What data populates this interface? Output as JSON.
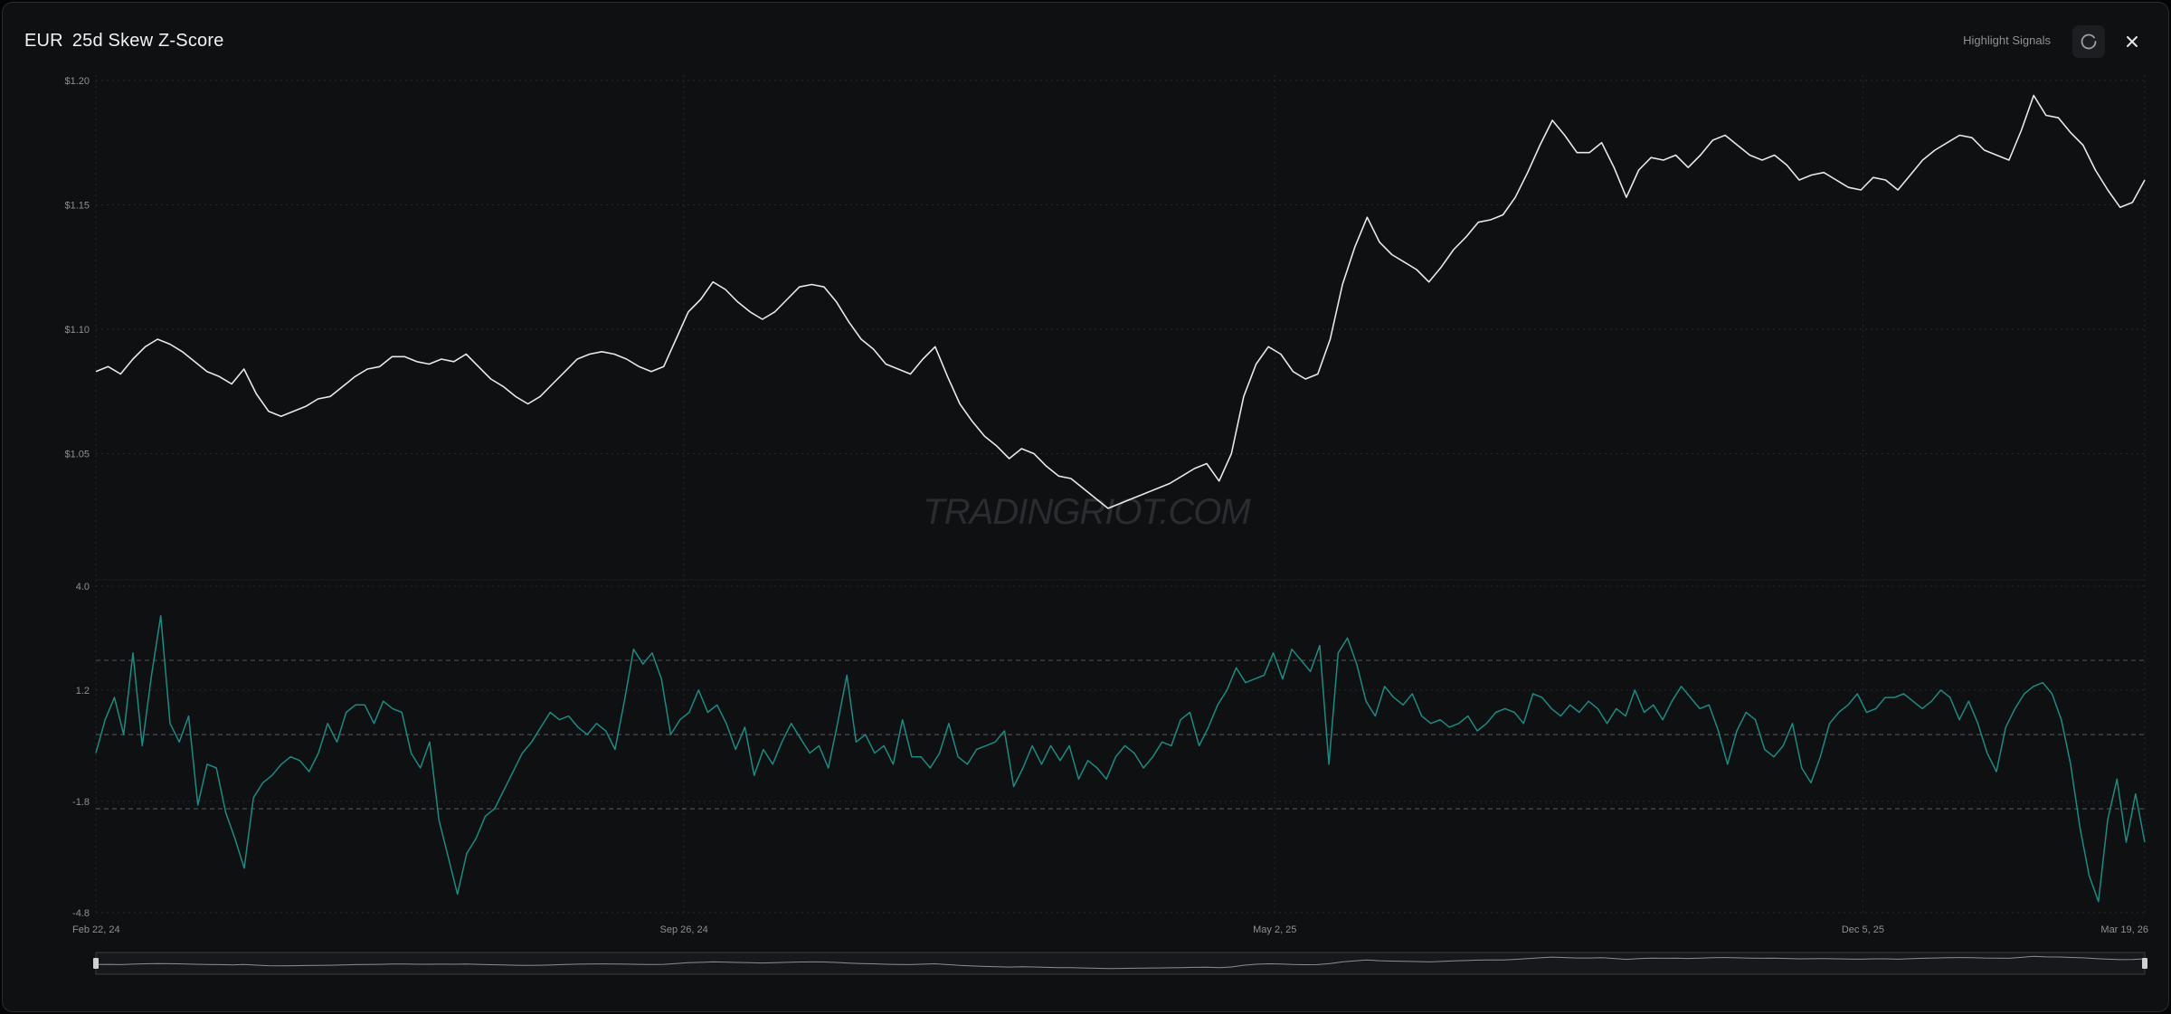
{
  "header": {
    "symbol": "EUR",
    "title": "25d Skew Z-Score",
    "highlight_label": "Highlight Signals",
    "refresh_icon": "refresh-icon",
    "close_icon": "close-icon"
  },
  "watermark": "TRADINGRIOT.COM",
  "colors": {
    "background": "#0f1012",
    "price_line": "#e8e8e8",
    "zscore_line": "#1e8a84",
    "grid": "#26282c",
    "threshold": "#4a4d52"
  },
  "chart_data": [
    {
      "type": "line",
      "x_type": "date",
      "x_start": "2024-02-22",
      "x_end": "2026-03-19",
      "x_tick_labels": [
        "Feb 22, 24",
        "Sep 26, 24",
        "May 2, 25",
        "Dec 5, 25",
        "Mar 19, 26"
      ],
      "y_tick_labels": [
        "$1.20",
        "$1.15",
        "$1.10",
        "$1.05"
      ],
      "ylim": [
        1.0,
        1.2
      ],
      "grid": true,
      "series": [
        {
          "values": [
            1.083,
            1.085,
            1.082,
            1.088,
            1.093,
            1.096,
            1.094,
            1.091,
            1.087,
            1.083,
            1.081,
            1.078,
            1.084,
            1.074,
            1.067,
            1.065,
            1.067,
            1.069,
            1.072,
            1.073,
            1.077,
            1.081,
            1.084,
            1.085,
            1.089,
            1.089,
            1.087,
            1.086,
            1.088,
            1.087,
            1.09,
            1.085,
            1.08,
            1.077,
            1.073,
            1.07,
            1.073,
            1.078,
            1.083,
            1.088,
            1.09,
            1.091,
            1.09,
            1.088,
            1.085,
            1.083,
            1.085,
            1.096,
            1.107,
            1.112,
            1.119,
            1.116,
            1.111,
            1.107,
            1.104,
            1.107,
            1.112,
            1.117,
            1.118,
            1.117,
            1.111,
            1.103,
            1.096,
            1.092,
            1.086,
            1.084,
            1.082,
            1.088,
            1.093,
            1.081,
            1.07,
            1.063,
            1.057,
            1.053,
            1.048,
            1.052,
            1.05,
            1.045,
            1.041,
            1.04,
            1.036,
            1.032,
            1.028,
            1.03,
            1.032,
            1.034,
            1.036,
            1.038,
            1.041,
            1.044,
            1.046,
            1.039,
            1.05,
            1.073,
            1.086,
            1.093,
            1.09,
            1.083,
            1.08,
            1.082,
            1.096,
            1.118,
            1.133,
            1.145,
            1.135,
            1.13,
            1.127,
            1.124,
            1.119,
            1.125,
            1.132,
            1.137,
            1.143,
            1.144,
            1.146,
            1.153,
            1.163,
            1.174,
            1.184,
            1.178,
            1.171,
            1.171,
            1.175,
            1.165,
            1.153,
            1.164,
            1.169,
            1.168,
            1.17,
            1.165,
            1.17,
            1.176,
            1.178,
            1.174,
            1.17,
            1.168,
            1.17,
            1.166,
            1.16,
            1.162,
            1.163,
            1.16,
            1.157,
            1.156,
            1.161,
            1.16,
            1.156,
            1.162,
            1.168,
            1.172,
            1.175,
            1.178,
            1.177,
            1.172,
            1.17,
            1.168,
            1.18,
            1.194,
            1.186,
            1.185,
            1.179,
            1.174,
            1.164,
            1.156,
            1.149,
            1.151,
            1.16
          ]
        }
      ]
    },
    {
      "type": "line",
      "y_tick_labels": [
        "4.0",
        "1.2",
        "-1.8",
        "-4.8"
      ],
      "ylim": [
        -4.8,
        4.0
      ],
      "threshold_lines": [
        2.0,
        0.0,
        -2.0
      ],
      "grid": true,
      "series": [
        {
          "values": [
            -0.5,
            0.4,
            1.0,
            0.0,
            2.2,
            -0.3,
            1.6,
            3.2,
            0.3,
            -0.2,
            0.5,
            -1.9,
            -0.8,
            -0.9,
            -2.1,
            -2.8,
            -3.6,
            -1.7,
            -1.3,
            -1.1,
            -0.8,
            -0.6,
            -0.7,
            -1.0,
            -0.5,
            0.3,
            -0.2,
            0.6,
            0.8,
            0.8,
            0.3,
            0.9,
            0.7,
            0.6,
            -0.5,
            -0.9,
            -0.2,
            -2.3,
            -3.3,
            -4.3,
            -3.2,
            -2.8,
            -2.2,
            -2.0,
            -1.5,
            -1.0,
            -0.5,
            -0.2,
            0.2,
            0.6,
            0.4,
            0.5,
            0.2,
            0.0,
            0.3,
            0.1,
            -0.4,
            0.9,
            2.3,
            1.9,
            2.2,
            1.5,
            0.0,
            0.4,
            0.6,
            1.2,
            0.6,
            0.8,
            0.3,
            -0.4,
            0.2,
            -1.1,
            -0.4,
            -0.8,
            -0.2,
            0.3,
            -0.1,
            -0.5,
            -0.3,
            -0.9,
            0.3,
            1.6,
            -0.2,
            0.0,
            -0.5,
            -0.3,
            -0.8,
            0.4,
            -0.6,
            -0.6,
            -0.9,
            -0.5,
            0.3,
            -0.6,
            -0.8,
            -0.4,
            -0.3,
            -0.2,
            0.1,
            -1.4,
            -0.9,
            -0.3,
            -0.8,
            -0.3,
            -0.7,
            -0.3,
            -1.2,
            -0.7,
            -0.9,
            -1.2,
            -0.6,
            -0.3,
            -0.5,
            -0.9,
            -0.6,
            -0.2,
            -0.3,
            0.4,
            0.6,
            -0.3,
            0.2,
            0.8,
            1.2,
            1.8,
            1.4,
            1.5,
            1.6,
            2.2,
            1.5,
            2.3,
            2.0,
            1.7,
            2.4,
            -0.8,
            2.2,
            2.6,
            1.9,
            0.9,
            0.5,
            1.3,
            1.0,
            0.8,
            1.1,
            0.5,
            0.3,
            0.4,
            0.2,
            0.3,
            0.5,
            0.1,
            0.3,
            0.6,
            0.7,
            0.6,
            0.3,
            1.1,
            1.0,
            0.7,
            0.5,
            0.8,
            0.6,
            0.9,
            0.7,
            0.3,
            0.7,
            0.5,
            1.2,
            0.6,
            0.8,
            0.4,
            0.9,
            1.3,
            1.0,
            0.7,
            0.8,
            0.1,
            -0.8,
            0.1,
            0.6,
            0.4,
            -0.4,
            -0.6,
            -0.3,
            0.3,
            -0.9,
            -1.3,
            -0.6,
            0.3,
            0.6,
            0.8,
            1.1,
            0.6,
            0.7,
            1.0,
            1.0,
            1.1,
            0.9,
            0.7,
            0.9,
            1.2,
            1.0,
            0.4,
            0.9,
            0.3,
            -0.5,
            -1.0,
            0.2,
            0.7,
            1.1,
            1.3,
            1.4,
            1.1,
            0.4,
            -0.8,
            -2.5,
            -3.8,
            -4.5,
            -2.3,
            -1.2,
            -2.9,
            -1.6,
            -2.9
          ]
        }
      ]
    },
    {
      "type": "area",
      "role": "navigator"
    }
  ]
}
